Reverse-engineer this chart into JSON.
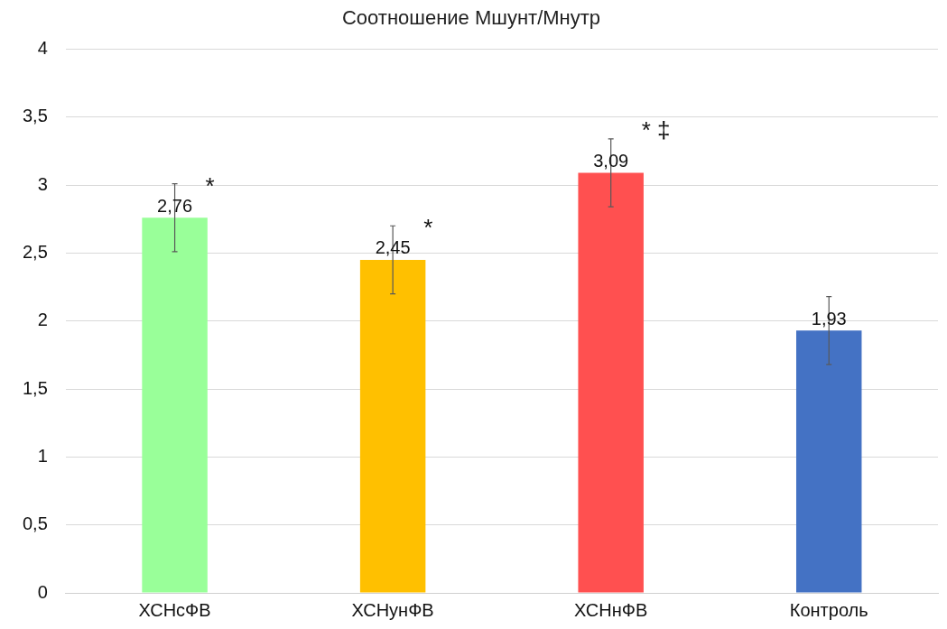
{
  "chart_data": {
    "type": "bar",
    "title": "Соотношение Мшунт/Мнутр",
    "categories": [
      "ХСНсФВ",
      "ХСНунФВ",
      "ХСНнФВ",
      "Контроль"
    ],
    "values": [
      2.76,
      2.45,
      3.09,
      1.93
    ],
    "colors": [
      "#99ff99",
      "#ffc000",
      "#ff5050",
      "#4472c4"
    ],
    "errors": [
      0.25,
      0.25,
      0.25,
      0.25
    ],
    "value_labels": [
      "2,76",
      "2,45",
      "3,09",
      "1,93"
    ],
    "ylim": [
      0,
      4
    ],
    "yticks": [
      0,
      {
        "value": 0.5,
        "label": "0,5"
      },
      1,
      {
        "value": 1.5,
        "label": "1,5"
      },
      2,
      {
        "value": 2.5,
        "label": "2,5"
      },
      3,
      {
        "value": 3.5,
        "label": "3,5"
      },
      4
    ],
    "grid": "y",
    "legend": false,
    "annotations": [
      "*",
      "*",
      "* ‡"
    ]
  }
}
